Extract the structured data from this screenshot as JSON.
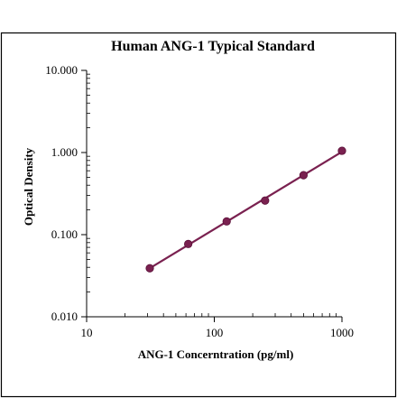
{
  "chart_data": {
    "type": "scatter",
    "title": "Human ANG-1 Typical Standard",
    "xlabel": "ANG-1 Concerntration (pg/ml)",
    "ylabel": "Optical Density",
    "x_scale": "log",
    "y_scale": "log",
    "xlim": [
      10,
      1000
    ],
    "ylim": [
      0.01,
      10
    ],
    "x_ticks": [
      10,
      100,
      1000
    ],
    "x_tick_labels": [
      "10",
      "100",
      "1000"
    ],
    "y_ticks": [
      0.01,
      0.1,
      1,
      10
    ],
    "y_tick_labels": [
      "0.010",
      "0.100",
      "1.000",
      "10.000"
    ],
    "grid": false,
    "legend": "none",
    "series": [
      {
        "x": [
          31.25,
          62.5,
          125,
          250,
          500,
          1000
        ],
        "y": [
          0.039,
          0.077,
          0.145,
          0.26,
          0.53,
          1.05
        ],
        "marker_color": "#7a2150",
        "line_color": "#7a2150",
        "fit_line": true
      }
    ]
  }
}
